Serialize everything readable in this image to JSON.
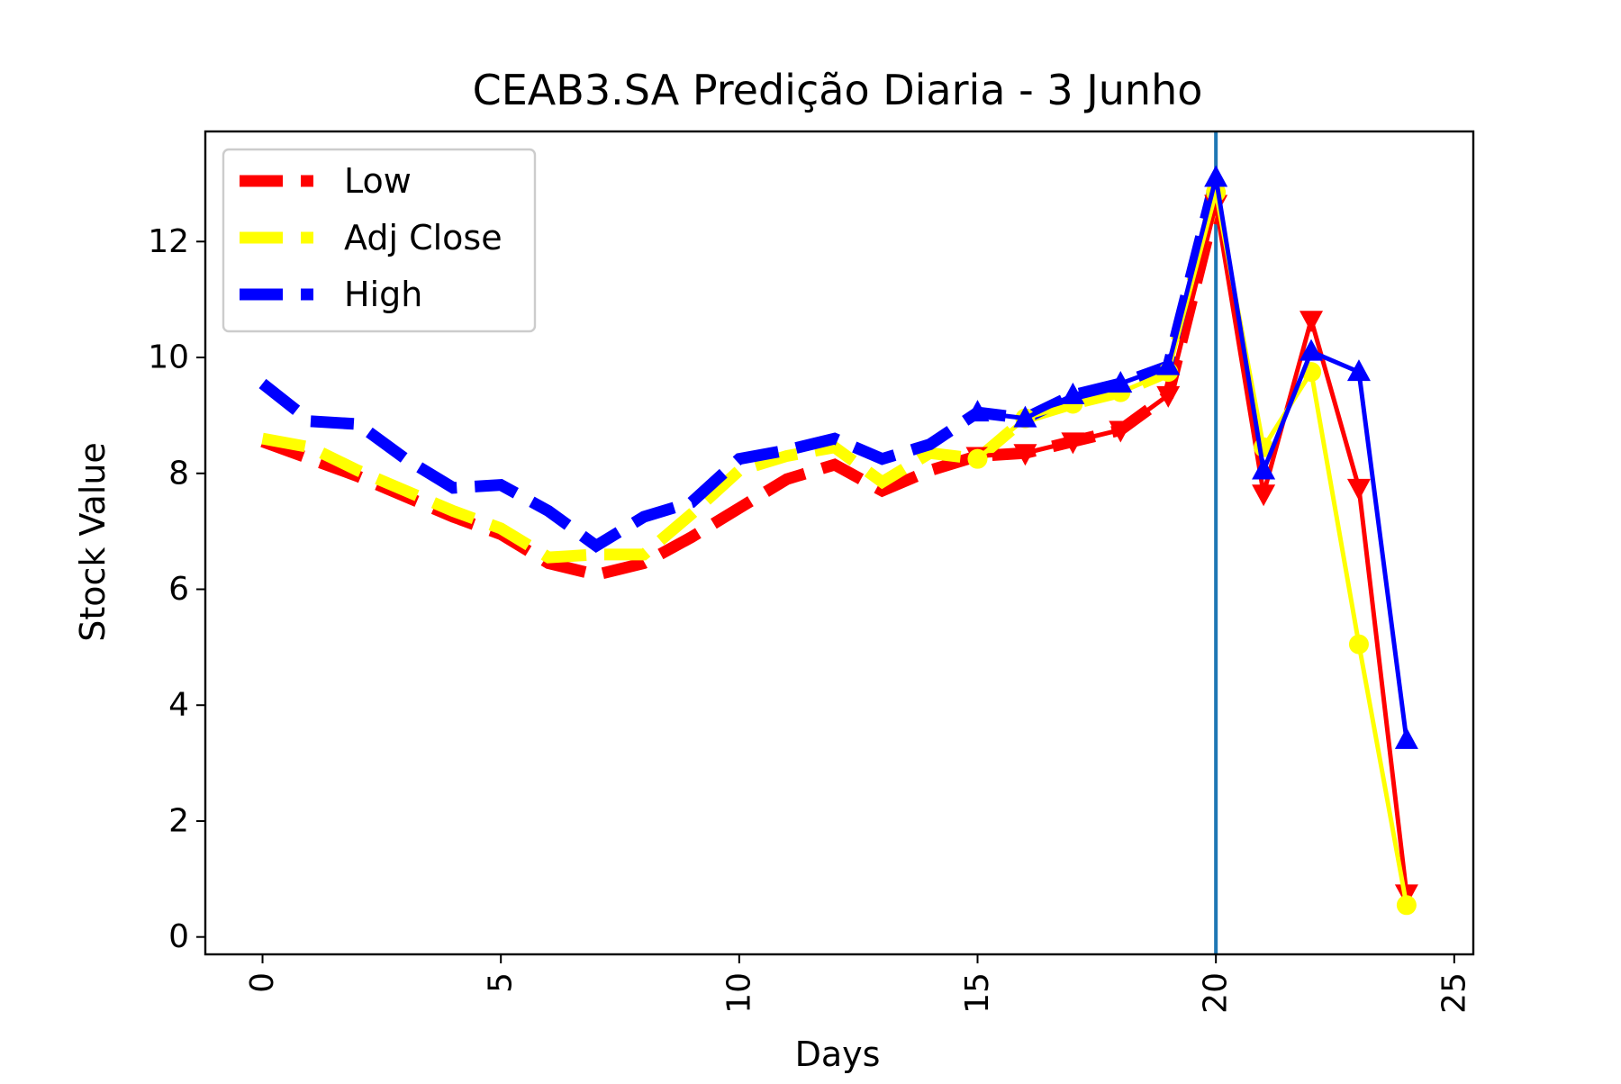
{
  "chart_data": {
    "type": "line",
    "title": "CEAB3.SA Predição Diaria - 3 Junho",
    "xlabel": "Days",
    "ylabel": "Stock Value",
    "xlim": [
      -1.2,
      25.4
    ],
    "ylim": [
      -0.3,
      13.9
    ],
    "xticks": [
      0,
      5,
      10,
      15,
      20,
      25
    ],
    "yticks": [
      0,
      2,
      4,
      6,
      8,
      10,
      12
    ],
    "grid": false,
    "legend_position": "top-left",
    "divider_x": 20,
    "divider_color": "#1f77b4",
    "series": [
      {
        "name": "Low",
        "color": "#ff0000",
        "marker": "triangle-down",
        "historical": {
          "x": [
            0,
            1,
            2,
            3,
            4,
            5,
            6,
            7,
            8,
            9,
            10,
            11,
            12,
            13,
            14,
            15,
            16,
            17,
            18,
            19,
            20
          ],
          "y": [
            8.55,
            8.25,
            7.95,
            7.6,
            7.25,
            6.95,
            6.45,
            6.25,
            6.45,
            6.9,
            7.4,
            7.9,
            8.15,
            7.7,
            8.05,
            8.3,
            8.35,
            8.55,
            8.75,
            9.35,
            12.65
          ]
        },
        "prediction": {
          "x": [
            15,
            16,
            17,
            18,
            19,
            20,
            21,
            22,
            23,
            24
          ],
          "y": [
            8.3,
            8.35,
            8.55,
            8.75,
            9.35,
            12.65,
            7.65,
            10.65,
            7.75,
            0.75
          ]
        }
      },
      {
        "name": "Adj Close",
        "color": "#ffff00",
        "marker": "circle",
        "historical": {
          "x": [
            0,
            1,
            2,
            3,
            4,
            5,
            6,
            7,
            8,
            9,
            10,
            11,
            12,
            13,
            14,
            15,
            16,
            17,
            18,
            19,
            20
          ],
          "y": [
            8.6,
            8.45,
            8.05,
            7.7,
            7.35,
            7.05,
            6.55,
            6.6,
            6.6,
            7.3,
            8.05,
            8.3,
            8.45,
            7.85,
            8.35,
            8.25,
            8.95,
            9.2,
            9.4,
            9.75,
            12.85
          ]
        },
        "prediction": {
          "x": [
            15,
            16,
            17,
            18,
            19,
            20,
            21,
            22,
            23,
            24
          ],
          "y": [
            8.25,
            8.95,
            9.2,
            9.4,
            9.75,
            12.85,
            8.45,
            9.75,
            5.05,
            0.55
          ]
        }
      },
      {
        "name": "High",
        "color": "#0000ff",
        "marker": "triangle-up",
        "historical": {
          "x": [
            0,
            1,
            2,
            3,
            4,
            5,
            6,
            7,
            8,
            9,
            10,
            11,
            12,
            13,
            14,
            15,
            16,
            17,
            18,
            19,
            20
          ],
          "y": [
            9.55,
            8.9,
            8.85,
            8.25,
            7.75,
            7.8,
            7.35,
            6.75,
            7.25,
            7.5,
            8.25,
            8.4,
            8.6,
            8.25,
            8.5,
            9.05,
            8.95,
            9.35,
            9.55,
            9.85,
            13.1
          ]
        },
        "prediction": {
          "x": [
            15,
            16,
            17,
            18,
            19,
            20,
            21,
            22,
            23,
            24
          ],
          "y": [
            9.05,
            8.95,
            9.35,
            9.55,
            9.85,
            13.1,
            8.05,
            10.1,
            9.75,
            3.4
          ]
        }
      }
    ]
  }
}
